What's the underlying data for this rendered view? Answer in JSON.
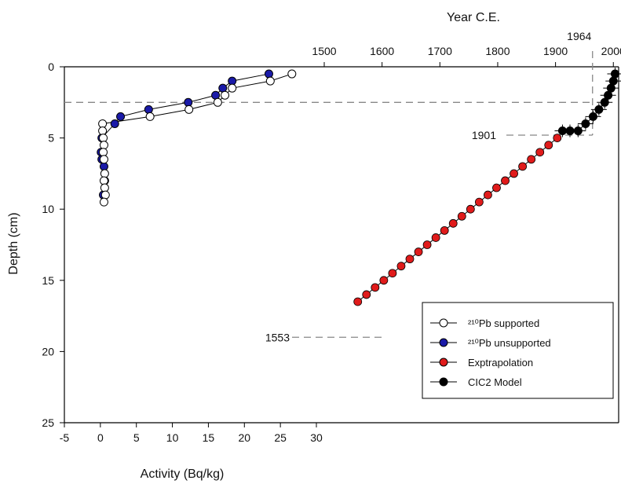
{
  "chart_data": {
    "type": "scatter",
    "title": "",
    "xlabel": "Activity (Bq/kg)",
    "ylabel": "Depth (cm)",
    "x2label": "Year C.E.",
    "xlim": [
      -5,
      30
    ],
    "ylim": [
      0,
      25
    ],
    "y_inverted": true,
    "x2lim": [
      1553,
      2003
    ],
    "x_ticks": [
      -5,
      0,
      5,
      10,
      15,
      20,
      25,
      30
    ],
    "y_ticks": [
      0,
      5,
      10,
      15,
      20,
      25
    ],
    "x2_ticks": [
      1500,
      1600,
      1700,
      1800,
      1900,
      2000
    ],
    "x2_extra_label": "1964",
    "legend_position": "bottom-right",
    "grid": false,
    "colors": {
      "unsupported": "#1a1aa8",
      "extrapolation": "#e01b1b",
      "model": "#000000",
      "supported": "#ffffff",
      "reference": "#888888"
    },
    "series": [
      {
        "name": "²¹⁰Pb supported",
        "marker": "open-circle",
        "x": [
          26.6,
          23.6,
          18.3,
          17.3,
          16.3,
          12.3,
          6.9,
          0.3,
          0.3,
          0.4,
          0.5,
          0.4,
          0.5,
          0.6,
          0.5,
          0.6,
          0.7,
          0.5
        ],
        "y": [
          0.5,
          1.0,
          1.5,
          2.0,
          2.5,
          3.0,
          3.5,
          4.0,
          4.5,
          5.0,
          5.5,
          6.0,
          6.5,
          7.5,
          8.0,
          8.5,
          9.0,
          9.5
        ]
      },
      {
        "name": "²¹⁰Pb unsupported",
        "marker": "filled-circle",
        "x": [
          23.4,
          18.3,
          17.0,
          16.0,
          12.2,
          6.7,
          2.8,
          2.0,
          0.2,
          0.1,
          0.2,
          0.5,
          0.6,
          0.4
        ],
        "y": [
          0.5,
          1.0,
          1.5,
          2.0,
          2.5,
          3.0,
          3.5,
          4.0,
          5.0,
          6.0,
          6.5,
          7.0,
          8.0,
          9.0
        ]
      },
      {
        "name": "Exptrapolation",
        "marker": "red-circle-line",
        "x": [
          1903,
          1888,
          1873,
          1858,
          1843,
          1828,
          1813,
          1798,
          1783,
          1768,
          1753,
          1738,
          1723,
          1708,
          1693,
          1678,
          1663,
          1648,
          1633,
          1618,
          1603,
          1588,
          1573,
          1558
        ],
        "y": [
          5.0,
          5.5,
          6.0,
          6.5,
          7.0,
          7.5,
          8.0,
          8.5,
          9.0,
          9.5,
          10.0,
          10.5,
          11.0,
          11.5,
          12.0,
          12.5,
          13.0,
          13.5,
          14.0,
          14.5,
          15.0,
          15.5,
          16.0,
          16.5
        ]
      },
      {
        "name": "CIC2 Model",
        "marker": "black-circle-line",
        "x": [
          2003,
          2000,
          1996,
          1991,
          1985,
          1975,
          1965,
          1952,
          1939,
          1925,
          1912
        ],
        "y": [
          0.5,
          1.0,
          1.5,
          2.0,
          2.5,
          3.0,
          3.5,
          4.0,
          4.5,
          4.5,
          4.5
        ]
      }
    ],
    "annotations": [
      {
        "label": "1901",
        "year": 1901,
        "depth": 4.8
      },
      {
        "label": "1553",
        "year": 1553,
        "depth": 19.0
      },
      {
        "label": "1964",
        "year": 1964,
        "depth": 0
      }
    ]
  }
}
